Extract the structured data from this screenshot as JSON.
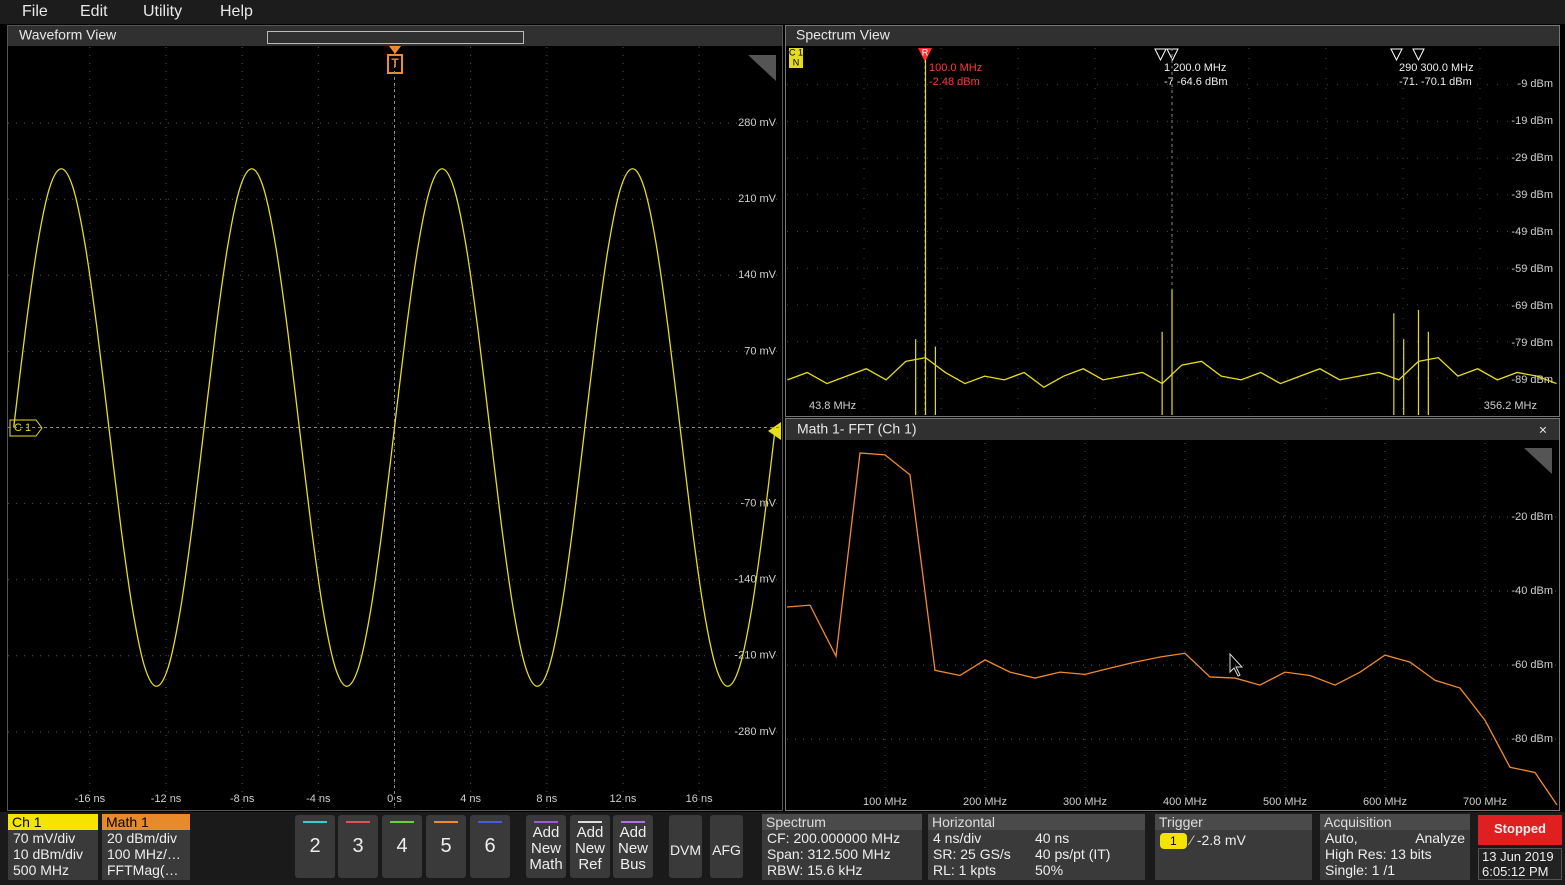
{
  "menu": [
    "File",
    "Edit",
    "Utility",
    "Help"
  ],
  "waveform_view": {
    "title": "Waveform View",
    "channel_badge": "C 1",
    "trigger_badge": "T",
    "chart_data": {
      "type": "line",
      "x": [
        -20,
        -19.375,
        -18.75,
        -18.125,
        -17.5,
        -16.875,
        -16.25,
        -15.625,
        -15,
        -14.375,
        -13.75,
        -13.125,
        -12.5,
        -11.875,
        -11.25,
        -10.625,
        -10,
        -9.375,
        -8.75,
        -8.125,
        -7.5,
        -6.875,
        -6.25,
        -5.625,
        -5,
        -4.375,
        -3.75,
        -3.125,
        -2.5,
        -1.875,
        -1.25,
        -0.625,
        0,
        0.625,
        1.25,
        1.875,
        2.5,
        3.125,
        3.75,
        4.375,
        5,
        5.625,
        6.25,
        6.875,
        7.5,
        8.125,
        8.75,
        9.375,
        10,
        10.625,
        11.25,
        11.875,
        12.5,
        13.125,
        13.75,
        14.375,
        15,
        15.625,
        16.25,
        16.875,
        17.5,
        18.125,
        18.75,
        19.375,
        20
      ],
      "series": [
        {
          "color": "#e6dc1e",
          "values": [
            0,
            91,
            168,
            220,
            238,
            220,
            168,
            91,
            0,
            -91,
            -168,
            -220,
            -238,
            -220,
            -168,
            -91,
            0,
            91,
            168,
            220,
            238,
            220,
            168,
            91,
            0,
            -91,
            -168,
            -220,
            -238,
            -220,
            -168,
            -91,
            0,
            91,
            168,
            220,
            238,
            220,
            168,
            91,
            0,
            -91,
            -168,
            -220,
            -238,
            -220,
            -168,
            -91,
            0,
            91,
            168,
            220,
            238,
            220,
            168,
            91,
            0,
            -91,
            -168,
            -220,
            -238,
            -220,
            -168,
            -91,
            0
          ]
        }
      ],
      "xlim": [
        -20.3,
        20.3
      ],
      "ylim": [
        -350,
        350
      ],
      "xticks": [
        {
          "value": -16,
          "label": "-16 ns"
        },
        {
          "value": -12,
          "label": "-12 ns"
        },
        {
          "value": -8,
          "label": "-8 ns"
        },
        {
          "value": -4,
          "label": "-4 ns"
        },
        {
          "value": 0,
          "label": "0 s"
        },
        {
          "value": 4,
          "label": "4 ns"
        },
        {
          "value": 8,
          "label": "8 ns"
        },
        {
          "value": 12,
          "label": "12 ns"
        },
        {
          "value": 16,
          "label": "16 ns"
        }
      ],
      "yticks": [
        {
          "value": 280,
          "label": "280 mV"
        },
        {
          "value": 210,
          "label": "210 mV"
        },
        {
          "value": 140,
          "label": "140 mV"
        },
        {
          "value": 70,
          "label": "70 mV"
        },
        {
          "value": -70,
          "label": "-70 mV"
        },
        {
          "value": -140,
          "label": "-140 mV"
        },
        {
          "value": -210,
          "label": "-210 mV"
        },
        {
          "value": -280,
          "label": "-280 mV"
        }
      ],
      "grid": true
    }
  },
  "spectrum_view": {
    "title": "Spectrum View",
    "channel_badge": [
      "C 1",
      "N"
    ],
    "reference_marker": "R",
    "markers": [
      [
        "100.0 MHz",
        "-2.48 dBm"
      ],
      [
        "1 200.0 MHz",
        "-7 -64.6 dBm"
      ],
      [
        "290 300.0 MHz",
        "-71. -70.1 dBm"
      ]
    ],
    "start_label": "43.8 MHz",
    "stop_label": "356.2 MHz",
    "chart_data": {
      "type": "line",
      "x": [
        44,
        52,
        60,
        68,
        76,
        84,
        92,
        100,
        108,
        116,
        124,
        132,
        140,
        148,
        156,
        164,
        172,
        180,
        188,
        196,
        204,
        212,
        220,
        228,
        236,
        244,
        252,
        260,
        268,
        276,
        284,
        292,
        300,
        308,
        316,
        324,
        332,
        340,
        348,
        356
      ],
      "series": [
        {
          "color": "#e6dc1e",
          "values": [
            -89,
            -87,
            -90,
            -88,
            -86,
            -89,
            -84,
            -83,
            -87,
            -90,
            -88,
            -89,
            -87,
            -91,
            -88,
            -86,
            -89,
            -88,
            -87,
            -90,
            -85,
            -84,
            -88,
            -89,
            -87,
            -90,
            -88,
            -86,
            -89,
            -88,
            -87,
            -89,
            -84,
            -83,
            -88,
            -86,
            -89,
            -87,
            -88,
            -90
          ]
        }
      ],
      "peaks": {
        "x": [
          96,
          100,
          104,
          196,
          200,
          290,
          294,
          300,
          304
        ],
        "values": [
          -78,
          -2.48,
          -80,
          -76,
          -64.6,
          -71,
          -78,
          -70.1,
          -76
        ]
      },
      "xlim": [
        43.8,
        356.2
      ],
      "ylim": [
        -98.5,
        0.7
      ],
      "yticks": [
        {
          "value": -9,
          "label": "-9 dBm"
        },
        {
          "value": -19,
          "label": "-19 dBm"
        },
        {
          "value": -29,
          "label": "-29 dBm"
        },
        {
          "value": -39,
          "label": "-39 dBm"
        },
        {
          "value": -49,
          "label": "-49 dBm"
        },
        {
          "value": -59,
          "label": "-59 dBm"
        },
        {
          "value": -69,
          "label": "-69 dBm"
        },
        {
          "value": -79,
          "label": "-79 dBm"
        },
        {
          "value": -89,
          "label": "-89 dBm"
        }
      ]
    }
  },
  "fft_view": {
    "title": "Math 1- FFT (Ch 1)",
    "close": "×",
    "chart_data": {
      "type": "line",
      "x": [
        2,
        25,
        51,
        75,
        100,
        125,
        150,
        175,
        200,
        225,
        250,
        275,
        300,
        325,
        350,
        375,
        400,
        425,
        450,
        475,
        500,
        525,
        550,
        575,
        600,
        625,
        650,
        675,
        700,
        725,
        750,
        772
      ],
      "series": [
        {
          "color": "#f08a2c",
          "values": [
            -44.3,
            -43.8,
            -57.6,
            -2.7,
            -3.2,
            -8.6,
            -61.4,
            -62.8,
            -58.6,
            -61.9,
            -63.5,
            -61.9,
            -62.5,
            -60.8,
            -59.2,
            -57.8,
            -56.8,
            -63.2,
            -63.5,
            -65.4,
            -61.9,
            -62.8,
            -65.4,
            -61.9,
            -57.3,
            -59.2,
            -64.1,
            -66.2,
            -74.9,
            -87.6,
            -89,
            -97.8
          ]
        }
      ],
      "xlim": [
        2,
        772
      ],
      "ylim": [
        -98.6,
        0
      ],
      "xticks": [
        {
          "value": 100,
          "label": "100 MHz"
        },
        {
          "value": 200,
          "label": "200 MHz"
        },
        {
          "value": 300,
          "label": "300 MHz"
        },
        {
          "value": 400,
          "label": "400 MHz"
        },
        {
          "value": 500,
          "label": "500 MHz"
        },
        {
          "value": 600,
          "label": "600 MHz"
        },
        {
          "value": 700,
          "label": "700 MHz"
        }
      ],
      "yticks": [
        {
          "value": -20,
          "label": "-20 dBm"
        },
        {
          "value": -40,
          "label": "-40 dBm"
        },
        {
          "value": -60,
          "label": "-60 dBm"
        },
        {
          "value": -80,
          "label": "-80 dBm"
        }
      ],
      "grid": true
    }
  },
  "badges": {
    "ch1": {
      "title": "Ch 1",
      "lines": [
        "70 mV/div",
        "10 dBm/div",
        "500 MHz"
      ]
    },
    "math1": {
      "title": "Math 1",
      "lines": [
        "20 dBm/div",
        "100 MHz/…",
        "FFTMag(…"
      ]
    }
  },
  "channel_buttons": [
    "2",
    "3",
    "4",
    "5",
    "6"
  ],
  "add_buttons": [
    [
      "Add",
      "New",
      "Math"
    ],
    [
      "Add",
      "New",
      "Ref"
    ],
    [
      "Add",
      "New",
      "Bus"
    ]
  ],
  "dvm": "DVM",
  "afg": "AFG",
  "spectrum_badge": {
    "title": "Spectrum",
    "lines": [
      "CF: 200.000000 MHz",
      "Span: 312.500 MHz",
      "RBW: 15.6 kHz"
    ]
  },
  "horizontal": {
    "title": "Horizontal",
    "rows": [
      [
        "4 ns/div",
        "40 ns"
      ],
      [
        "SR: 25 GS/s",
        "40 ps/pt (IT)"
      ],
      [
        "RL: 1 kpts",
        "50%"
      ]
    ]
  },
  "trigger": {
    "title": "Trigger",
    "source": "1",
    "level": "-2.8 mV"
  },
  "acquisition": {
    "title": "Acquisition",
    "rows": [
      [
        "Auto,",
        "Analyze"
      ],
      [
        "High Res: 13 bits"
      ],
      [
        "Single: 1 /1"
      ]
    ]
  },
  "status": "Stopped",
  "date": "13 Jun 2019",
  "time": "6:05:12 PM"
}
